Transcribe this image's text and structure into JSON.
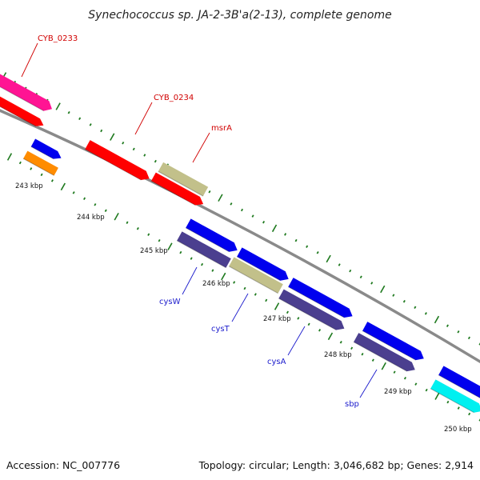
{
  "title": "Synechococcus sp. JA-2-3B'a(2-13), complete genome",
  "footer": {
    "accession": "Accession: NC_007776",
    "topology": "Topology: circular; Length: 3,046,682 bp; Genes: 2,914"
  },
  "scale_labels": [
    "243 kbp",
    "244 kbp",
    "245 kbp",
    "246 kbp",
    "247 kbp",
    "248 kbp",
    "249 kbp",
    "250 kbp"
  ],
  "gene_labels": [
    {
      "text": "CYB_0233",
      "color": "#d10000"
    },
    {
      "text": "CYB_0234",
      "color": "#d10000"
    },
    {
      "text": "msrA",
      "color": "#d10000"
    },
    {
      "text": "cysW",
      "color": "#1a1acc"
    },
    {
      "text": "cysT",
      "color": "#1a1acc"
    },
    {
      "text": "cysA",
      "color": "#1a1acc"
    },
    {
      "text": "sbp",
      "color": "#1a1acc"
    }
  ],
  "colors": {
    "backbone": "#8a8a8a",
    "tick": "#1f7a1f",
    "magenta": "#ff1493",
    "red": "#ff0000",
    "blue": "#0000ee",
    "orange": "#ff8c00",
    "khaki": "#c2c08a",
    "slate": "#4b3f8f",
    "cyan": "#00f0f0"
  }
}
